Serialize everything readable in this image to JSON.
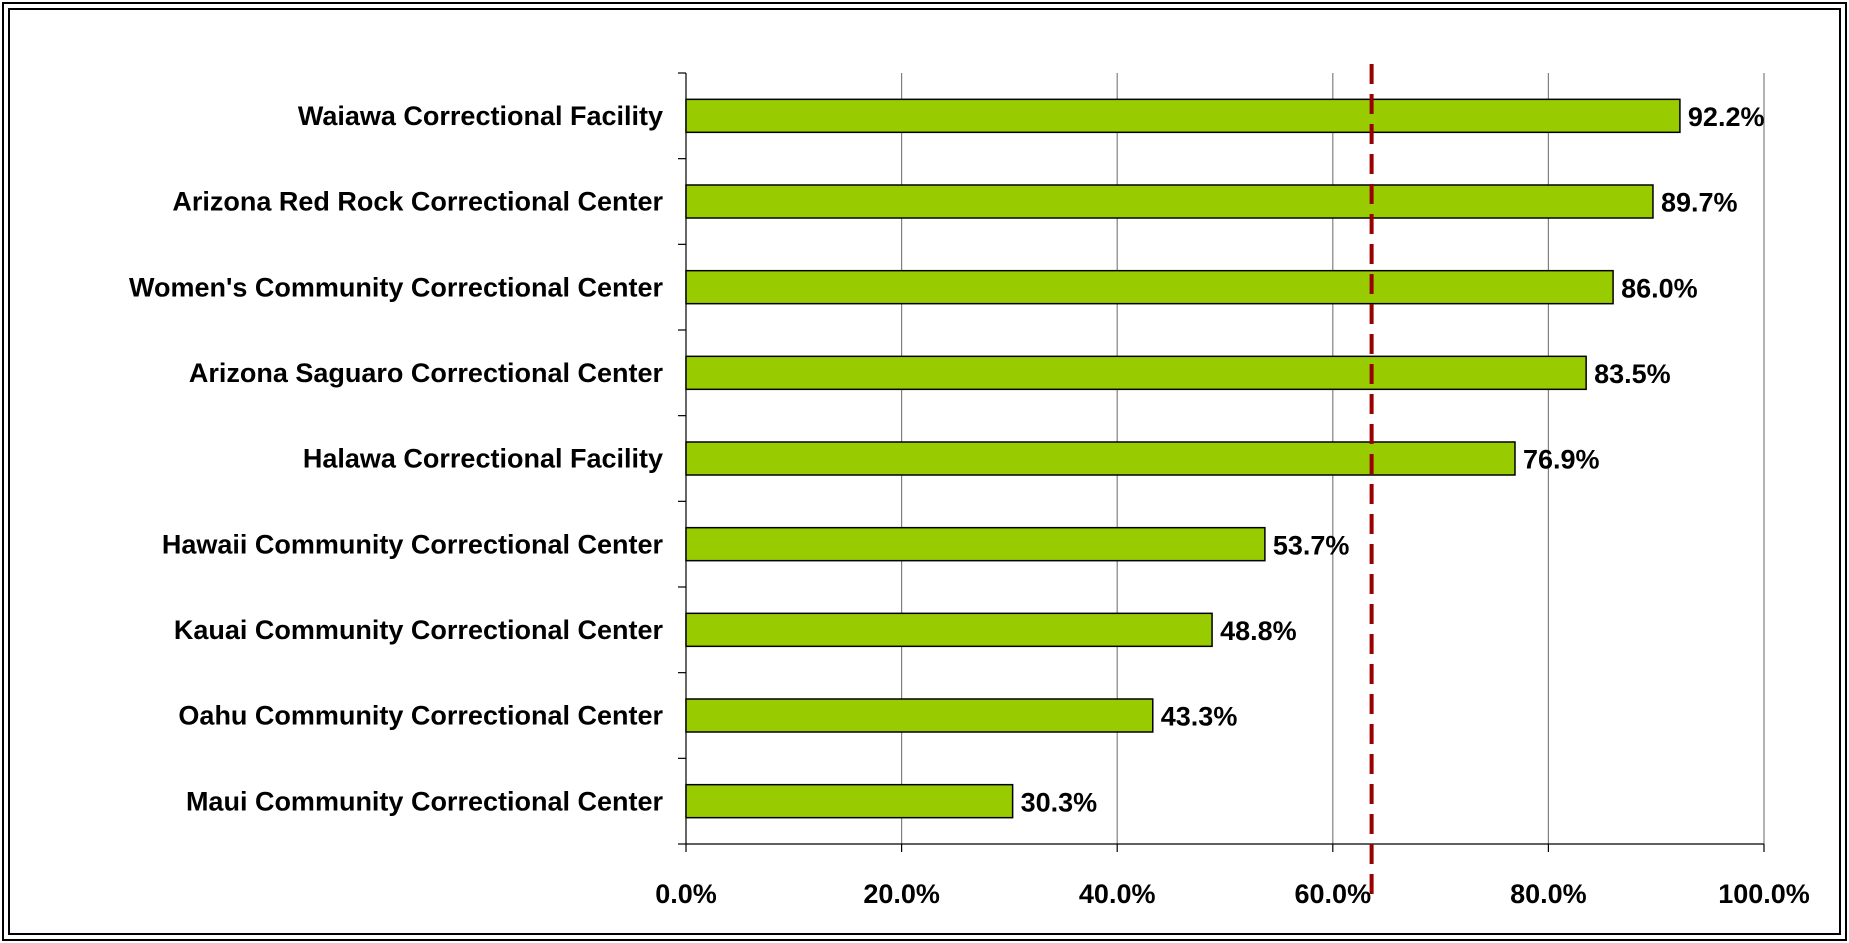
{
  "chart_data": {
    "type": "bar",
    "orientation": "horizontal",
    "categories": [
      "Waiawa Correctional Facility",
      "Arizona Red Rock Correctional Center",
      "Women's Community Correctional Center",
      "Arizona Saguaro Correctional Center",
      "Halawa Correctional Facility",
      "Hawaii Community Correctional Center",
      "Kauai Community Correctional Center",
      "Oahu Community Correctional Center",
      "Maui Community Correctional Center"
    ],
    "values": [
      92.2,
      89.7,
      86.0,
      83.5,
      76.9,
      53.7,
      48.8,
      43.3,
      30.3
    ],
    "value_labels": [
      "92.2%",
      "89.7%",
      "86.0%",
      "83.5%",
      "76.9%",
      "53.7%",
      "48.8%",
      "43.3%",
      "30.3%"
    ],
    "color": "#99cc00",
    "xlim": [
      0,
      100
    ],
    "xticks": [
      {
        "value": 0,
        "label": "0.0%"
      },
      {
        "value": 20,
        "label": "20.0%"
      },
      {
        "value": 40,
        "label": "40.0%"
      },
      {
        "value": 60,
        "label": "60.0%"
      },
      {
        "value": 80,
        "label": "80.0%"
      },
      {
        "value": 100,
        "label": "100.0%"
      }
    ],
    "grid": true,
    "reference_line": {
      "value": 63.6,
      "color": "#990000"
    }
  }
}
